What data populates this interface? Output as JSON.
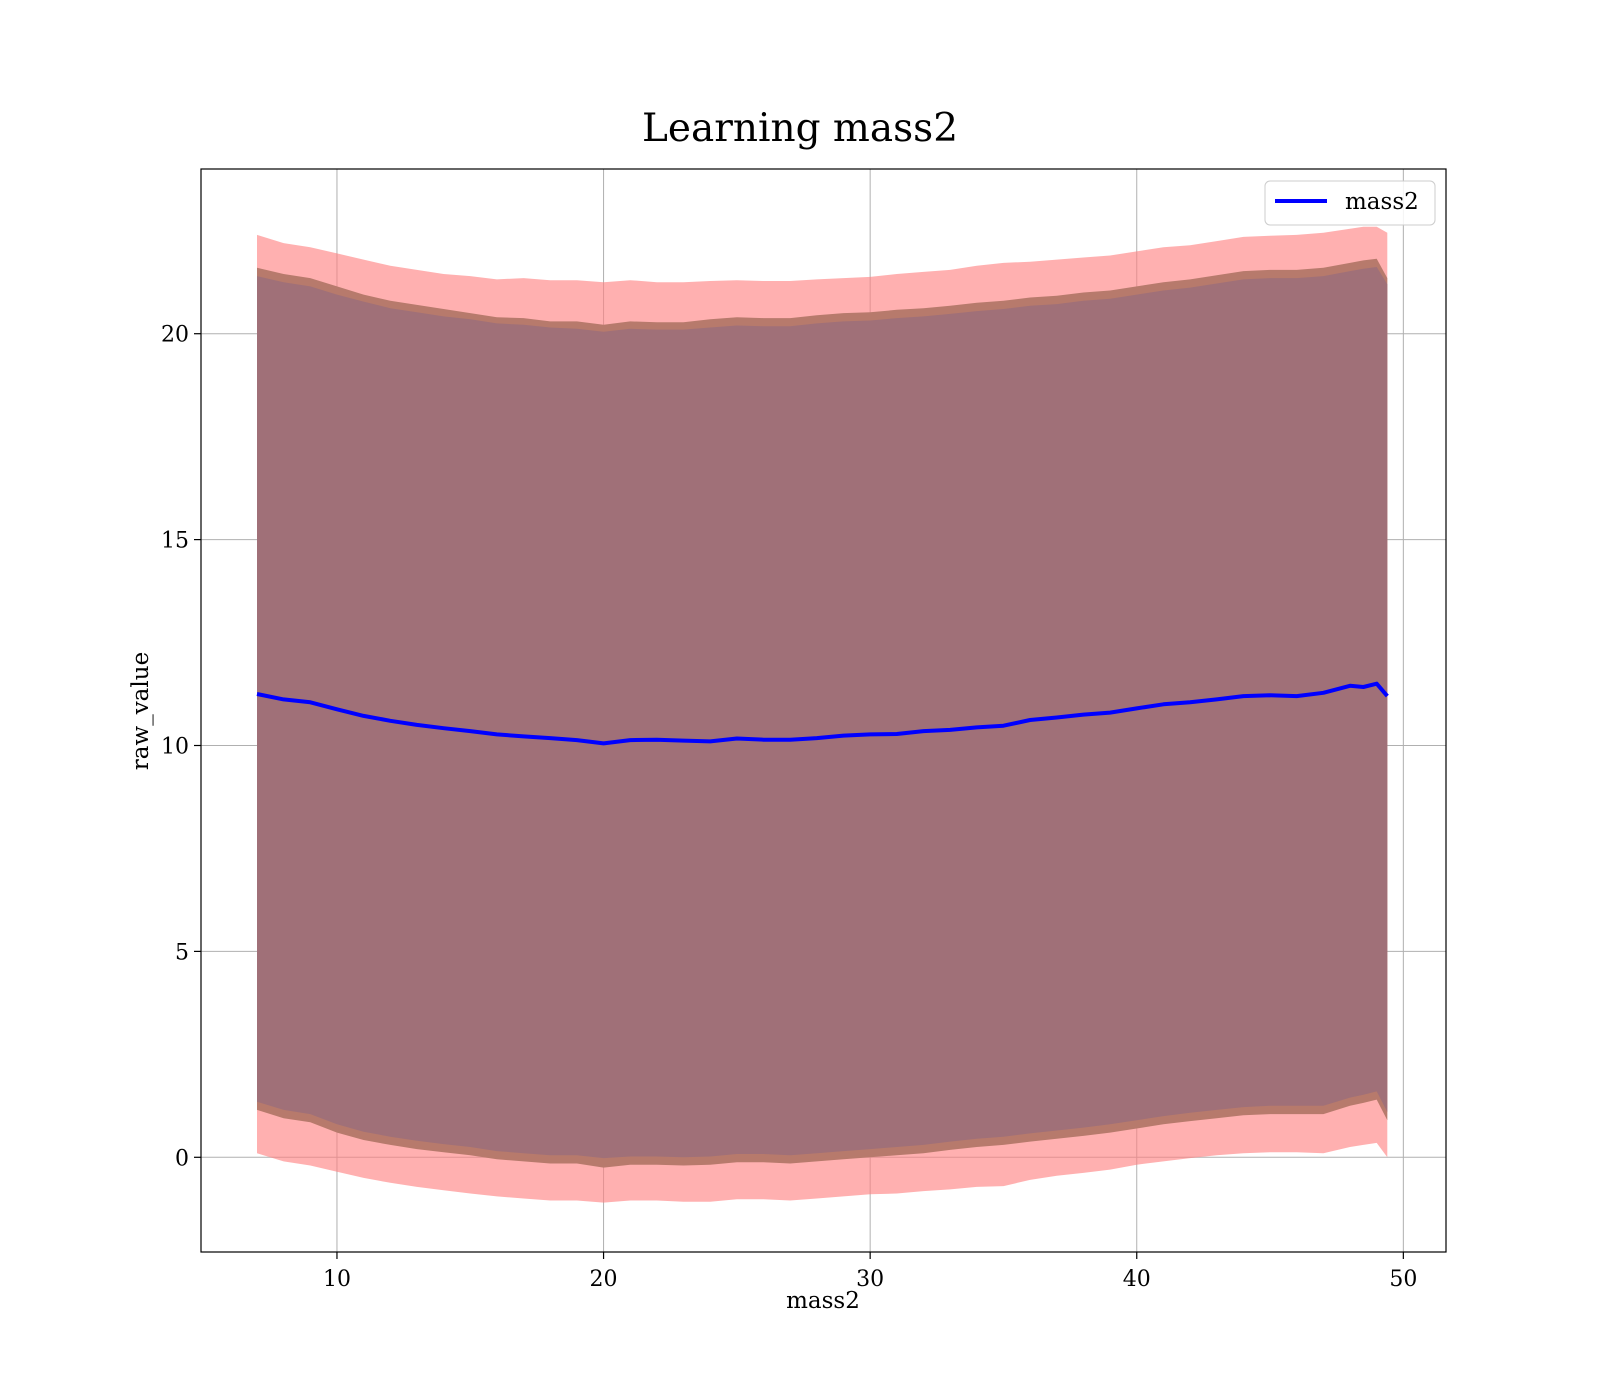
{
  "chart_data": {
    "type": "line",
    "title": "Learning mass2",
    "xlabel": "mass2",
    "ylabel": "raw_value",
    "xlim": [
      4.9,
      51.6
    ],
    "ylim": [
      -2.3,
      24.0
    ],
    "xticks": [
      10,
      20,
      30,
      40,
      50
    ],
    "yticks": [
      0,
      5,
      10,
      15,
      20
    ],
    "grid": true,
    "legend": {
      "position": "top-right",
      "entries": [
        "mass2"
      ]
    },
    "x": [
      7.0,
      8.0,
      9.0,
      10.0,
      11.0,
      12.0,
      13.0,
      14.0,
      15.0,
      16.0,
      17.0,
      18.0,
      19.0,
      20.0,
      21.0,
      22.0,
      23.0,
      24.0,
      25.0,
      26.0,
      27.0,
      28.0,
      29.0,
      30.0,
      31.0,
      32.0,
      33.0,
      34.0,
      35.0,
      36.0,
      37.0,
      38.0,
      39.0,
      40.0,
      41.0,
      42.0,
      43.0,
      44.0,
      45.0,
      46.0,
      47.0,
      48.0,
      48.5,
      49.0,
      49.4
    ],
    "series": [
      {
        "name": "mass2",
        "color": "#0000ff",
        "values": [
          11.25,
          11.12,
          11.05,
          10.88,
          10.72,
          10.6,
          10.5,
          10.42,
          10.35,
          10.27,
          10.22,
          10.18,
          10.13,
          10.05,
          10.13,
          10.14,
          10.12,
          10.1,
          10.17,
          10.14,
          10.14,
          10.18,
          10.24,
          10.27,
          10.28,
          10.35,
          10.38,
          10.44,
          10.48,
          10.62,
          10.68,
          10.75,
          10.8,
          10.9,
          11.0,
          11.05,
          11.12,
          11.2,
          11.22,
          11.2,
          11.28,
          11.45,
          11.42,
          11.5,
          11.2
        ]
      }
    ],
    "bands": [
      {
        "color": "#ff7f7f",
        "upper": [
          22.4,
          22.2,
          22.1,
          21.95,
          21.8,
          21.65,
          21.55,
          21.45,
          21.4,
          21.32,
          21.35,
          21.3,
          21.3,
          21.25,
          21.3,
          21.25,
          21.25,
          21.28,
          21.3,
          21.28,
          21.28,
          21.32,
          21.35,
          21.38,
          21.45,
          21.5,
          21.55,
          21.65,
          21.72,
          21.75,
          21.8,
          21.85,
          21.9,
          22.0,
          22.1,
          22.15,
          22.25,
          22.35,
          22.38,
          22.4,
          22.45,
          22.55,
          22.6,
          22.6,
          22.45
        ],
        "lower": [
          0.1,
          -0.1,
          -0.2,
          -0.35,
          -0.5,
          -0.62,
          -0.72,
          -0.8,
          -0.88,
          -0.95,
          -1.0,
          -1.05,
          -1.05,
          -1.1,
          -1.05,
          -1.05,
          -1.08,
          -1.08,
          -1.02,
          -1.02,
          -1.05,
          -1.0,
          -0.95,
          -0.9,
          -0.88,
          -0.82,
          -0.78,
          -0.72,
          -0.7,
          -0.55,
          -0.45,
          -0.38,
          -0.3,
          -0.18,
          -0.1,
          -0.02,
          0.05,
          0.1,
          0.12,
          0.12,
          0.1,
          0.25,
          0.3,
          0.35,
          0.0
        ]
      },
      {
        "color": "#b77a6c",
        "upper": [
          21.6,
          21.45,
          21.35,
          21.15,
          20.95,
          20.8,
          20.7,
          20.6,
          20.5,
          20.4,
          20.38,
          20.3,
          20.3,
          20.22,
          20.3,
          20.28,
          20.28,
          20.35,
          20.4,
          20.38,
          20.38,
          20.45,
          20.5,
          20.52,
          20.58,
          20.62,
          20.68,
          20.75,
          20.8,
          20.88,
          20.92,
          21.0,
          21.05,
          21.15,
          21.25,
          21.32,
          21.42,
          21.52,
          21.55,
          21.55,
          21.6,
          21.72,
          21.78,
          21.82,
          21.35
        ],
        "lower": [
          1.15,
          0.95,
          0.85,
          0.6,
          0.42,
          0.3,
          0.2,
          0.12,
          0.05,
          -0.05,
          -0.1,
          -0.15,
          -0.15,
          -0.25,
          -0.18,
          -0.18,
          -0.2,
          -0.18,
          -0.12,
          -0.12,
          -0.15,
          -0.1,
          -0.05,
          0.0,
          0.05,
          0.1,
          0.18,
          0.25,
          0.3,
          0.38,
          0.45,
          0.52,
          0.6,
          0.7,
          0.8,
          0.88,
          0.95,
          1.02,
          1.05,
          1.05,
          1.05,
          1.25,
          1.32,
          1.4,
          0.9
        ]
      },
      {
        "color": "#a07078",
        "upper": [
          21.4,
          21.25,
          21.15,
          20.95,
          20.78,
          20.62,
          20.52,
          20.42,
          20.35,
          20.25,
          20.22,
          20.15,
          20.12,
          20.05,
          20.12,
          20.1,
          20.1,
          20.15,
          20.2,
          20.18,
          20.18,
          20.25,
          20.3,
          20.32,
          20.38,
          20.42,
          20.48,
          20.55,
          20.6,
          20.68,
          20.72,
          20.8,
          20.85,
          20.95,
          21.05,
          21.12,
          21.22,
          21.32,
          21.35,
          21.35,
          21.4,
          21.52,
          21.58,
          21.62,
          21.2
        ],
        "lower": [
          1.35,
          1.15,
          1.05,
          0.8,
          0.62,
          0.5,
          0.4,
          0.32,
          0.25,
          0.15,
          0.1,
          0.05,
          0.05,
          -0.02,
          0.02,
          0.02,
          0.0,
          0.02,
          0.08,
          0.08,
          0.05,
          0.1,
          0.15,
          0.2,
          0.25,
          0.3,
          0.38,
          0.45,
          0.5,
          0.58,
          0.65,
          0.72,
          0.8,
          0.9,
          1.0,
          1.08,
          1.15,
          1.22,
          1.25,
          1.25,
          1.25,
          1.45,
          1.52,
          1.6,
          1.1
        ]
      }
    ]
  }
}
